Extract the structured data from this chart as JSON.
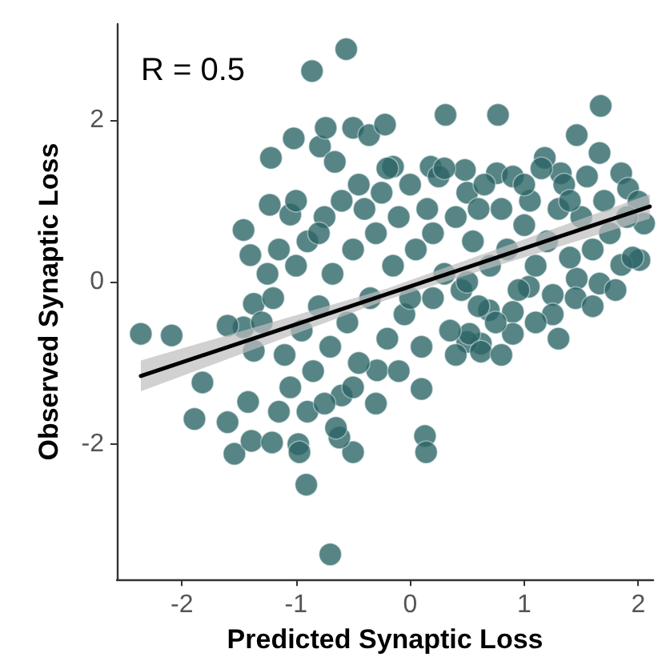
{
  "chart_data": {
    "type": "scatter",
    "xlabel": "Predicted Synaptic Loss",
    "ylabel": "Observed Synaptic Loss",
    "annotations": [
      "R = 0.5"
    ],
    "xlim": [
      -2.57,
      2.13
    ],
    "xticks": [
      -2,
      -1,
      0,
      1,
      2
    ],
    "ylim": [
      -3.67,
      3.18
    ],
    "yticks": [
      -2,
      0,
      2
    ],
    "grid": false,
    "marker": "circle",
    "series": [
      {
        "color": "#2d6566",
        "x": [
          -2.36,
          -2.09,
          -1.82,
          -1.89,
          -1.6,
          -1.54,
          -1.39,
          -1.21,
          -1.46,
          -0.91,
          -0.7,
          -0.98,
          -0.5,
          0.1,
          0.13,
          0.14,
          -0.56,
          -0.86,
          -1.22,
          -0.79,
          -1.02,
          -0.66,
          -0.74,
          -0.5,
          -0.36,
          -1.23,
          -1.05,
          -1.4,
          -1.46,
          0.77,
          1.67,
          0.31,
          -0.22,
          1.46,
          1.66,
          -0.15,
          0.18,
          0.48,
          0.76,
          1.18,
          1.32,
          1.85,
          1.91,
          2.0,
          2.05,
          2.01,
          1.85,
          1.66,
          1.46,
          1.25,
          1.04,
          0.9,
          0.69,
          0.62,
          0.5,
          0.9,
          0.52,
          0.62,
          -0.29,
          -1.42,
          -0.97,
          -0.62,
          -1.37,
          -1.6,
          -1.37,
          -1.3,
          -1.2,
          -1.1,
          -1.05,
          -1.0,
          -0.95,
          -0.9,
          -0.85,
          -0.8,
          -0.75,
          -0.7,
          -0.68,
          -0.6,
          -0.6,
          -0.55,
          -0.5,
          -0.45,
          -0.4,
          -0.35,
          -0.3,
          -0.3,
          -0.25,
          -0.2,
          -0.15,
          -0.1,
          -0.1,
          -0.05,
          0.0,
          0.05,
          0.1,
          0.15,
          0.2,
          0.25,
          0.3,
          0.35,
          0.4,
          0.45,
          0.5,
          0.55,
          0.6,
          0.65,
          0.7,
          0.75,
          0.8,
          0.85,
          0.9,
          0.95,
          1.0,
          1.05,
          1.1,
          1.15,
          1.2,
          1.25,
          1.3,
          1.35,
          1.4,
          1.45,
          1.5,
          1.55,
          1.6,
          1.7,
          1.75,
          1.8,
          1.9,
          1.95,
          -1.25,
          -0.9,
          -0.65,
          -0.5,
          -0.2,
          0.3,
          0.6,
          -1.15,
          -0.8,
          0.0,
          0.4,
          0.8,
          1.1,
          1.3,
          1.6,
          -0.45,
          -1.0,
          -1.15,
          -0.75,
          0.2,
          0.5,
          1.0,
          1.4
        ],
        "values": [
          -0.64,
          -0.66,
          -1.24,
          -1.69,
          -1.73,
          -2.12,
          -1.96,
          -1.98,
          -0.56,
          -2.5,
          -3.36,
          -2.0,
          -2.1,
          -1.32,
          -1.9,
          -2.1,
          2.87,
          2.6,
          1.53,
          1.67,
          1.77,
          1.48,
          1.9,
          1.9,
          1.81,
          0.95,
          0.83,
          0.33,
          0.64,
          2.06,
          2.17,
          2.06,
          1.94,
          1.81,
          1.59,
          1.42,
          1.42,
          1.38,
          1.34,
          1.53,
          1.34,
          1.34,
          1.15,
          0.99,
          0.72,
          0.27,
          0.21,
          -0.02,
          0.04,
          -0.16,
          -0.06,
          -0.37,
          -0.35,
          -0.76,
          -0.74,
          -0.64,
          -0.64,
          -0.86,
          -1.09,
          -1.48,
          -2.1,
          -1.92,
          -0.85,
          -0.54,
          -0.27,
          -0.5,
          -0.2,
          -0.9,
          -1.3,
          0.2,
          -0.6,
          0.5,
          -1.1,
          -0.3,
          0.8,
          -0.8,
          0.1,
          -1.4,
          1.0,
          -0.5,
          0.4,
          -1.0,
          0.9,
          -0.2,
          -1.5,
          0.6,
          1.1,
          -0.7,
          0.2,
          -1.1,
          0.8,
          -0.4,
          1.2,
          0.4,
          -0.8,
          0.9,
          -0.2,
          1.3,
          0.1,
          -0.6,
          0.8,
          -0.1,
          1.1,
          0.5,
          -0.3,
          1.2,
          0.2,
          -0.5,
          0.9,
          0.4,
          1.3,
          -0.1,
          0.7,
          1.0,
          0.2,
          1.4,
          0.5,
          -0.4,
          0.9,
          1.2,
          0.3,
          -0.2,
          0.8,
          1.3,
          0.4,
          1.0,
          0.6,
          -0.1,
          0.8,
          0.3,
          0.1,
          -1.6,
          -1.8,
          -1.3,
          1.4,
          1.4,
          0.9,
          -1.6,
          0.6,
          -0.2,
          -0.9,
          -0.9,
          -0.5,
          -0.7,
          -0.3,
          1.2,
          1.0,
          0.4,
          -1.5,
          0.6,
          0.0,
          1.2,
          1.0
        ]
      },
      {
        "type": "line",
        "color": "#000000",
        "x": [
          -2.36,
          -0.2,
          2.1
        ],
        "values": [
          -1.16,
          -0.15,
          0.93
        ],
        "lower": [
          -1.35,
          -0.22,
          0.78
        ],
        "upper": [
          -0.97,
          -0.08,
          1.08
        ],
        "marker": "none"
      }
    ]
  }
}
